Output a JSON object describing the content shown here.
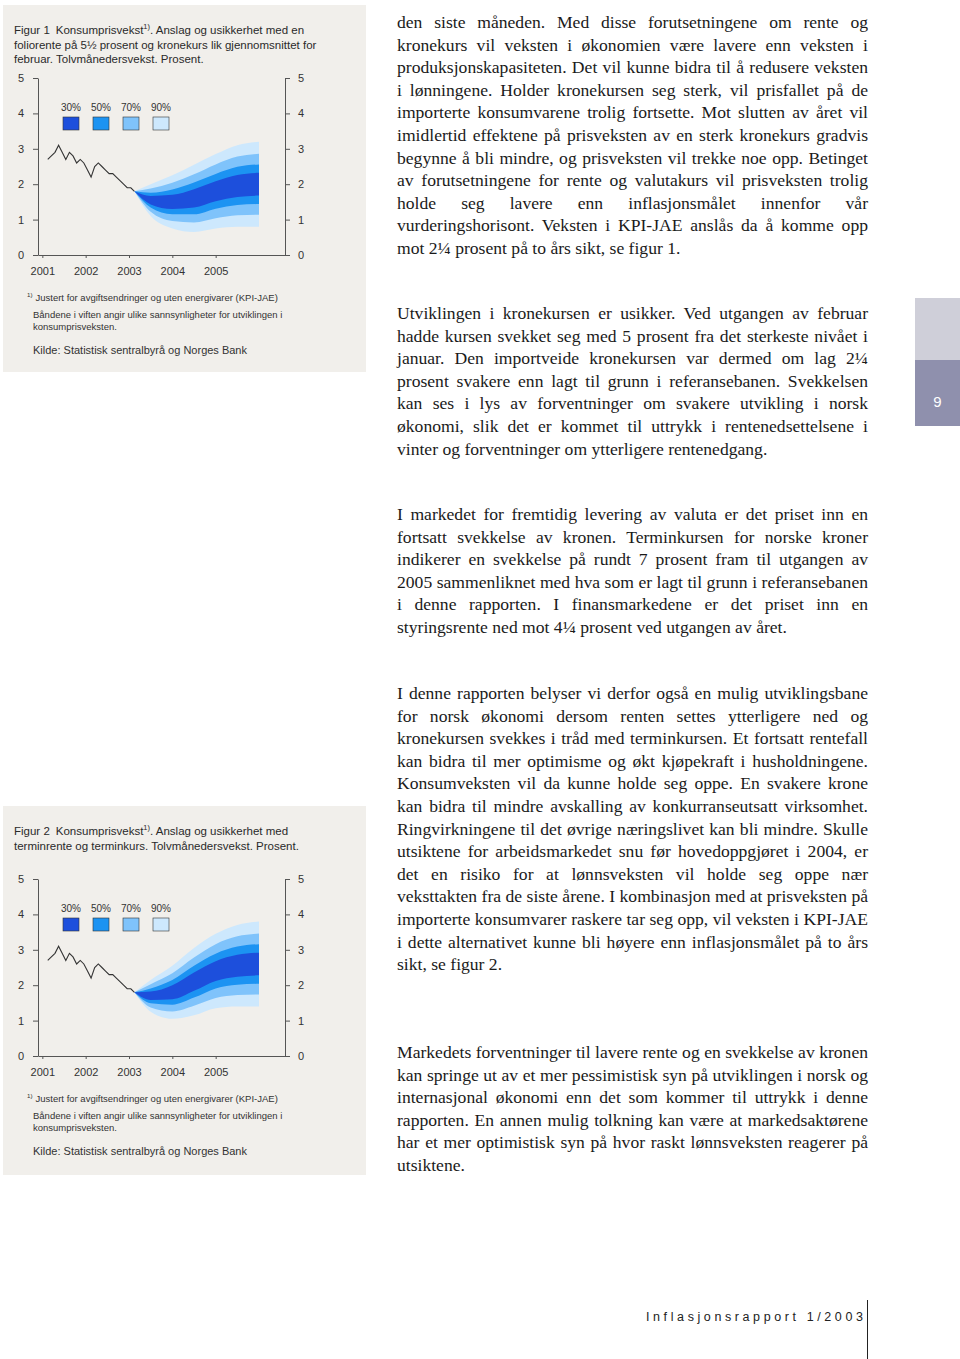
{
  "chart_data": [
    {
      "type": "fan",
      "title": "Figur 1",
      "title_parts": [
        "Konsumprisvekst",
        "1)",
        ". Anslag og usikkerhet med en foliorente på 5½ prosent og kronekurs lik gjennomsnittet for februar. Tolvmånedersvekst. Prosent."
      ],
      "footnote_mark": "1)",
      "footnote": "Justert for avgiftsendringer og uten energivarer (KPI-JAE)",
      "notes": [
        "Båndene i viften angir ulike sannsynligheter for utviklingen i konsumprisveksten.",
        "Kilde: Statistisk sentralbyrå og Norges Bank"
      ],
      "xlim": [
        2000.9,
        2006.6
      ],
      "xticks": [
        2001,
        2002,
        2003,
        2004,
        2005
      ],
      "ylim": [
        0,
        5
      ],
      "yticks": [
        0,
        1,
        2,
        3,
        4,
        5
      ],
      "y2lim": [
        0,
        5
      ],
      "y2ticks": [
        0,
        1,
        2,
        3,
        4,
        5
      ],
      "x": [
        2001.125,
        2001.208,
        2001.292,
        2001.375,
        2001.458,
        2001.542,
        2001.625,
        2001.708,
        2001.792,
        2001.875,
        2001.958,
        2002.042,
        2002.125,
        2002.208,
        2002.292,
        2002.375,
        2002.458,
        2002.542,
        2002.625,
        2002.708,
        2002.792,
        2002.875,
        2002.958,
        2003.042,
        2003.125
      ],
      "values": [
        2.7,
        2.8,
        2.9,
        3.1,
        2.9,
        2.7,
        2.9,
        2.8,
        2.6,
        2.7,
        2.6,
        2.4,
        2.2,
        2.5,
        2.6,
        2.5,
        2.4,
        2.3,
        2.3,
        2.2,
        2.1,
        2.0,
        1.9,
        1.9,
        1.8
      ],
      "color": "#333333",
      "legend": "top-left",
      "forecast": {
        "x": [
          2003.125,
          2003.5,
          2004.0,
          2004.5,
          2005.0,
          2005.5,
          2006.0
        ],
        "bands": [
          {
            "name": "30%",
            "color": "#1d4fdc",
            "lower": [
              1.8,
              1.43,
              1.3,
              1.34,
              1.52,
              1.64,
              1.68
            ],
            "upper": [
              1.8,
              1.67,
              1.7,
              1.86,
              2.08,
              2.26,
              2.32
            ]
          },
          {
            "name": "50%",
            "color": "#1c93f2",
            "lower": [
              1.8,
              1.34,
              1.15,
              1.15,
              1.31,
              1.41,
              1.44
            ],
            "upper": [
              1.8,
              1.76,
              1.85,
              2.05,
              2.29,
              2.49,
              2.56
            ]
          },
          {
            "name": "70%",
            "color": "#7fc3fb",
            "lower": [
              1.8,
              1.22,
              0.96,
              0.92,
              1.04,
              1.12,
              1.14
            ],
            "upper": [
              1.8,
              1.88,
              2.04,
              2.28,
              2.56,
              2.78,
              2.86
            ]
          },
          {
            "name": "90%",
            "color": "#cde8fd",
            "lower": [
              1.8,
              1.1,
              0.75,
              0.65,
              0.75,
              0.8,
              0.8
            ],
            "upper": [
              1.8,
              2.0,
              2.25,
              2.55,
              2.85,
              3.1,
              3.2
            ]
          }
        ]
      }
    },
    {
      "type": "fan",
      "title": "Figur 2",
      "title_parts": [
        "Konsumprisvekst",
        "1)",
        ". Anslag og usikkerhet med terminrente og terminkurs. Tolvmånedersvekst. Prosent."
      ],
      "footnote_mark": "1)",
      "footnote": "Justert for avgiftsendringer og uten energivarer (KPI-JAE)",
      "notes": [
        "Båndene i viften angir ulike sannsynligheter for utviklingen i konsumprisveksten.",
        "Kilde: Statistisk sentralbyrå og Norges Bank"
      ],
      "xlim": [
        2000.9,
        2006.6
      ],
      "xticks": [
        2001,
        2002,
        2003,
        2004,
        2005
      ],
      "ylim": [
        0,
        5
      ],
      "yticks": [
        0,
        1,
        2,
        3,
        4,
        5
      ],
      "y2lim": [
        0,
        5
      ],
      "y2ticks": [
        0,
        1,
        2,
        3,
        4,
        5
      ],
      "x": [
        2001.125,
        2001.208,
        2001.292,
        2001.375,
        2001.458,
        2001.542,
        2001.625,
        2001.708,
        2001.792,
        2001.875,
        2001.958,
        2002.042,
        2002.125,
        2002.208,
        2002.292,
        2002.375,
        2002.458,
        2002.542,
        2002.625,
        2002.708,
        2002.792,
        2002.875,
        2002.958,
        2003.042,
        2003.125
      ],
      "values": [
        2.7,
        2.8,
        2.9,
        3.1,
        2.9,
        2.7,
        2.9,
        2.8,
        2.6,
        2.7,
        2.6,
        2.4,
        2.2,
        2.5,
        2.6,
        2.5,
        2.4,
        2.3,
        2.3,
        2.2,
        2.1,
        2.0,
        1.9,
        1.9,
        1.8
      ],
      "color": "#333333",
      "legend": "top-left",
      "forecast": {
        "x": [
          2003.125,
          2003.5,
          2004.0,
          2004.5,
          2005.0,
          2005.5,
          2006.0
        ],
        "bands": [
          {
            "name": "30%",
            "color": "#1d4fdc",
            "lower": [
              1.8,
              1.58,
              1.6,
              1.84,
              2.12,
              2.24,
              2.28
            ],
            "upper": [
              1.8,
              1.82,
              2.0,
              2.36,
              2.68,
              2.86,
              2.92
            ]
          },
          {
            "name": "50%",
            "color": "#1c93f2",
            "lower": [
              1.8,
              1.49,
              1.45,
              1.65,
              1.91,
              2.01,
              2.04
            ],
            "upper": [
              1.8,
              1.91,
              2.15,
              2.55,
              2.89,
              3.09,
              3.16
            ]
          },
          {
            "name": "70%",
            "color": "#7fc3fb",
            "lower": [
              1.8,
              1.37,
              1.26,
              1.42,
              1.64,
              1.72,
              1.74
            ],
            "upper": [
              1.8,
              2.03,
              2.34,
              2.78,
              3.16,
              3.38,
              3.46
            ]
          },
          {
            "name": "90%",
            "color": "#cde8fd",
            "lower": [
              1.8,
              1.25,
              1.05,
              1.15,
              1.35,
              1.4,
              1.4
            ],
            "upper": [
              1.8,
              2.15,
              2.55,
              3.05,
              3.45,
              3.7,
              3.8
            ]
          }
        ]
      }
    }
  ],
  "paragraphs": [
    "den siste måneden. Med disse forutsetningene om rente og kronekurs vil veksten i økonomien være lavere enn veksten i produksjonskapasiteten. Det vil kunne bidra til å redusere veksten i lønningene. Holder kronekursen seg sterk, vil prisfallet på de importerte konsumvarene trolig fortsette. Mot slutten av året vil imidlertid effektene på prisveksten av en sterk kronekurs gradvis begynne å bli mindre, og prisveksten vil trekke noe opp. Betinget av forutsetningene for rente og valutakurs vil prisveksten trolig holde seg lavere enn inflasjonsmålet innenfor vår vurderingshorisont. Veksten i KPI-JAE anslås da å komme opp mot 2¼ prosent på to års sikt, se figur 1.",
    "Utviklingen i kronekursen er usikker. Ved utgangen av februar hadde kursen svekket seg med 5 prosent fra det sterkeste nivået i januar. Den importveide kronekursen var dermed om lag 2¼ prosent svakere enn lagt til grunn i referansebanen. Svekkelsen kan ses i lys av forventninger om svakere utvikling i norsk økonomi, slik det er kommet til uttrykk i rentenedsettelsene i vinter og forventninger om ytterligere rentenedgang.",
    "I markedet for fremtidig levering av valuta er det priset inn en fortsatt svekkelse av kronen. Terminkursen for norske kroner indikerer en svekkelse på rundt 7 prosent fram til utgangen av 2005 sammenliknet med hva som er lagt til grunn i referansebanen i denne rapporten. I finansmarkedene er det priset inn en styringsrente ned mot 4¼ prosent ved utgangen av året.",
    "I denne rapporten belyser vi derfor også en mulig utviklingsbane for norsk økonomi dersom renten settes ytterligere ned og kronekursen svekkes i tråd med terminkursen. Et fortsatt rentefall kan bidra til mer optimisme og økt kjøpekraft i husholdningene. Konsumveksten vil da kunne holde seg oppe. En svakere krone kan bidra til mindre avskalling av konkurranseutsatt virksomhet. Ringvirkningene til det øvrige næringslivet kan bli mindre. Skulle utsiktene for arbeidsmarkedet snu før hovedoppgjøret i 2004, er det en risiko for at lønnsveksten vil holde seg oppe nær veksttakten fra de siste årene. I kombinasjon med at prisveksten på importerte konsumvarer raskere tar seg opp, vil veksten i KPI-JAE i dette alternativet kunne bli høyere enn inflasjonsmålet på to års sikt, se figur 2.",
    "Markedets forventninger til lavere rente og en svekkelse av kronen kan springe ut av et mer pessimistisk syn på utviklingen i norsk og internasjonal økonomi enn det som kommer til uttrykk i denne rapporten. En annen mulig tolkning kan være at markedsaktørene har et mer optimistisk syn på hvor raskt lønnsveksten reagerer på utsiktene."
  ],
  "page_number": "9",
  "footer": "Inflasjonsrapport 1/2003"
}
